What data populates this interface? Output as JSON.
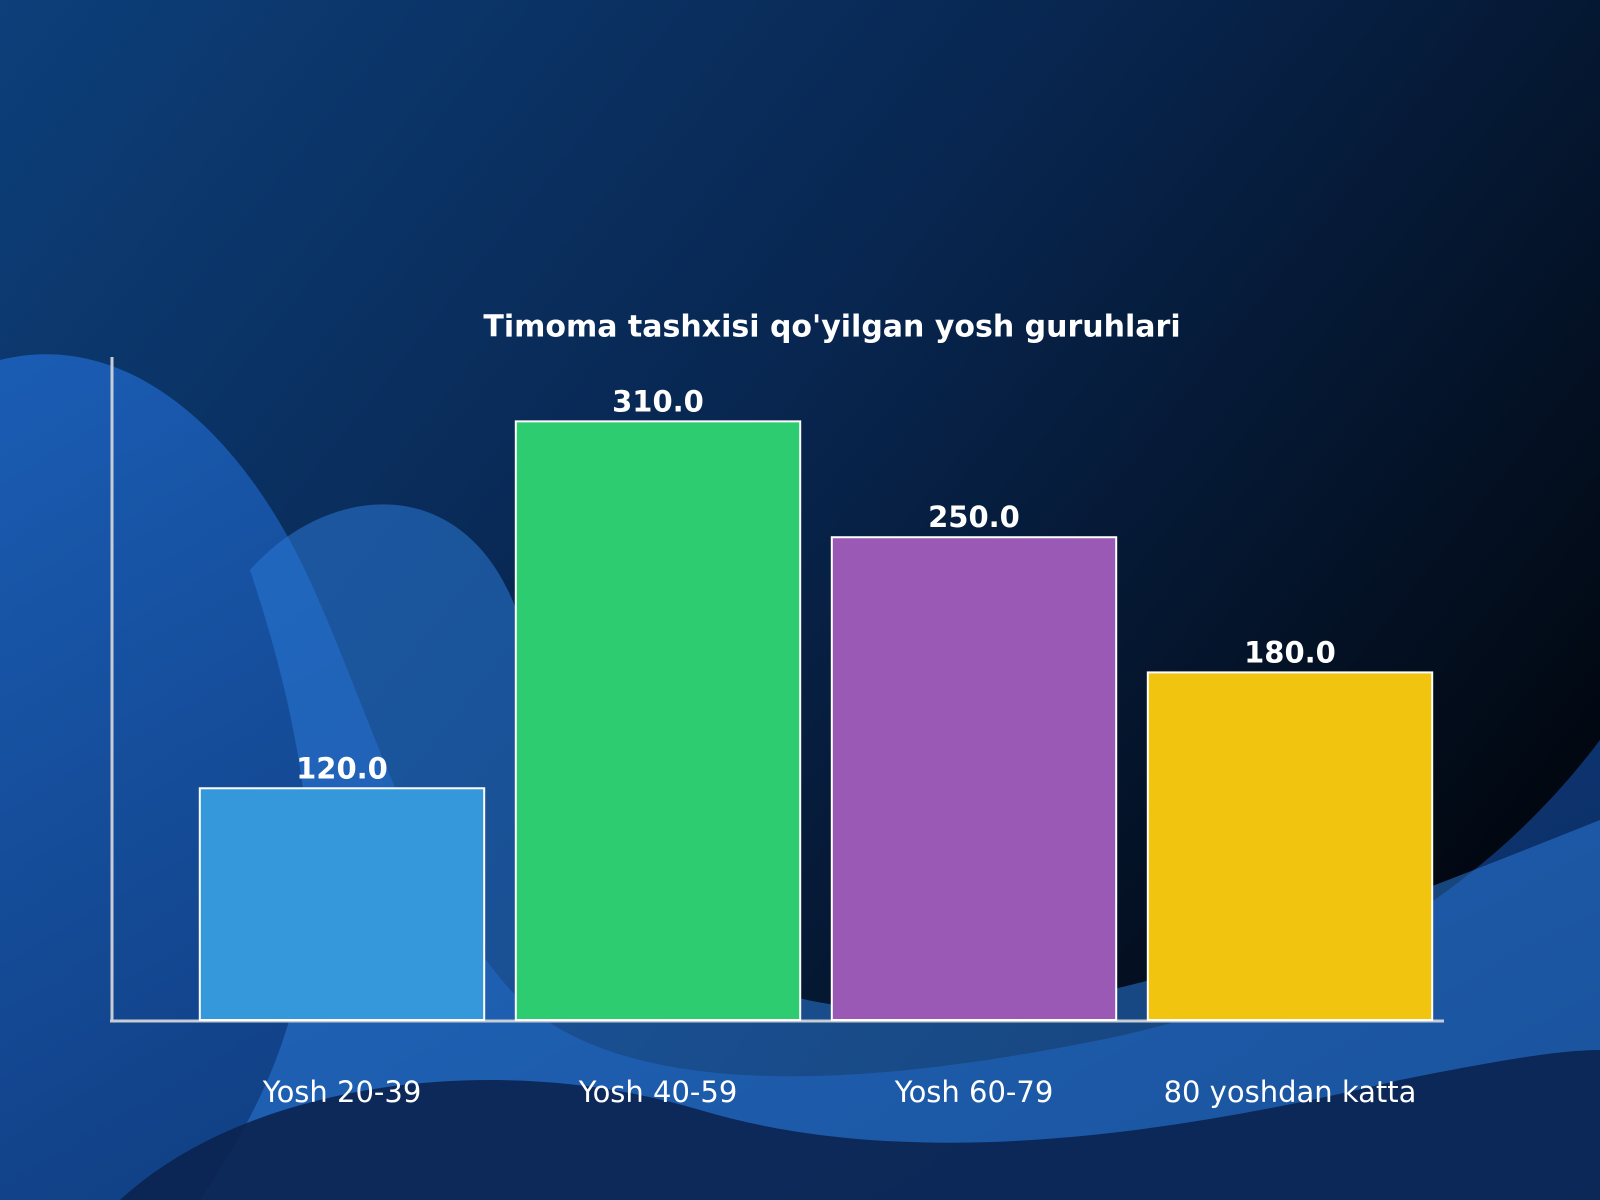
{
  "chart_data": {
    "type": "bar",
    "title": "Timoma tashxisi qo'yilgan yosh guruhlari",
    "categories": [
      "Yosh 20-39",
      "Yosh 40-59",
      "Yosh 60-79",
      "80 yoshdan katta"
    ],
    "values": [
      120,
      310,
      250,
      180
    ],
    "value_labels": [
      "120.0",
      "310.0",
      "250.0",
      "180.0"
    ],
    "colors": [
      "#3498db",
      "#2ecc71",
      "#9b59b6",
      "#f1c40f"
    ],
    "ylim": [
      0,
      341
    ]
  }
}
